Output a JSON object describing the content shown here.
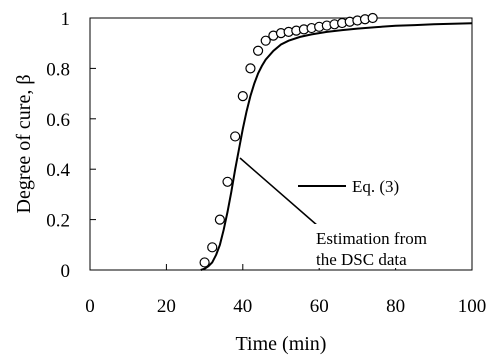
{
  "chart_data": {
    "type": "line",
    "xlabel": "Time (min)",
    "ylabel": "Degree of cure, β",
    "xlim": [
      0,
      100
    ],
    "ylim": [
      0,
      1
    ],
    "xticks": [
      "0",
      "20",
      "40",
      "60",
      "80",
      "100"
    ],
    "yticks": [
      "0",
      "0.2",
      "0.4",
      "0.6",
      "0.8",
      "1"
    ],
    "grid": false,
    "legend_position": "right",
    "series": [
      {
        "name": "Eq. (3)",
        "style": "solid-line",
        "x": [
          29,
          30,
          31,
          32,
          33,
          34,
          35,
          36,
          37,
          38,
          39,
          40,
          41,
          42,
          43,
          44,
          45,
          46,
          48,
          50,
          52,
          55,
          58,
          62,
          66,
          70,
          75,
          80,
          85,
          90,
          95,
          100
        ],
        "y": [
          0,
          0.005,
          0.015,
          0.03,
          0.06,
          0.1,
          0.16,
          0.23,
          0.31,
          0.4,
          0.48,
          0.56,
          0.63,
          0.69,
          0.74,
          0.78,
          0.81,
          0.835,
          0.87,
          0.895,
          0.91,
          0.925,
          0.935,
          0.945,
          0.952,
          0.958,
          0.964,
          0.969,
          0.972,
          0.975,
          0.977,
          0.979
        ]
      },
      {
        "name": "Estimation from the DSC data",
        "style": "open-circle",
        "x": [
          30,
          32,
          34,
          36,
          38,
          40,
          42,
          44,
          46,
          48,
          50,
          52,
          54,
          56,
          58,
          60,
          62,
          64,
          66,
          68,
          70,
          72,
          74
        ],
        "y": [
          0.03,
          0.09,
          0.2,
          0.35,
          0.53,
          0.69,
          0.8,
          0.87,
          0.91,
          0.93,
          0.94,
          0.945,
          0.95,
          0.955,
          0.96,
          0.965,
          0.97,
          0.975,
          0.98,
          0.985,
          0.99,
          0.995,
          1.0
        ]
      }
    ],
    "annotations": {
      "line_label": "Eq. (3)",
      "dsc_label_line1": "Estimation from",
      "dsc_label_line2": "the DSC data"
    }
  }
}
